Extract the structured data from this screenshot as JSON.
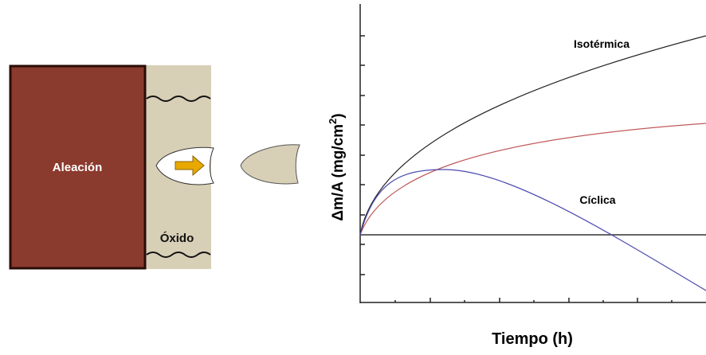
{
  "diagram": {
    "alloy_label": "Aleación",
    "oxide_label": "Óxido",
    "chart": {
      "y_label": {
        "main": "Δm/A (mg/cm",
        "superscript": "2",
        "end": ")"
      },
      "x_label": "Tiempo (h)",
      "curve_labels": [
        "Isotérmica",
        "Cíclica"
      ]
    }
  }
}
